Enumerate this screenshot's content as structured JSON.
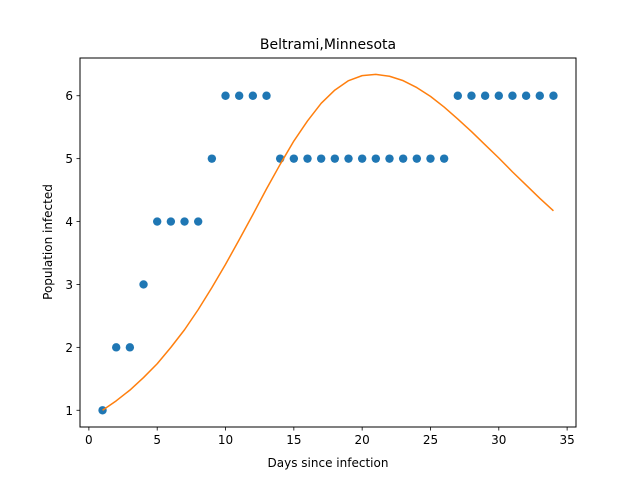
{
  "chart_data": {
    "type": "scatter",
    "title": "Beltrami,Minnesota",
    "xlabel": "Days since infection",
    "ylabel": "Population infected",
    "xlim": [
      -0.65,
      35.65
    ],
    "ylim": [
      0.734,
      6.6
    ],
    "xticks": [
      0,
      5,
      10,
      15,
      20,
      25,
      30,
      35
    ],
    "yticks": [
      1,
      2,
      3,
      4,
      5,
      6
    ],
    "grid": false,
    "series": [
      {
        "kind": "scatter",
        "color": "#1f77b4",
        "x": [
          1,
          2,
          3,
          4,
          5,
          6,
          7,
          8,
          9,
          10,
          11,
          12,
          13,
          14,
          15,
          16,
          17,
          18,
          19,
          20,
          21,
          22,
          23,
          24,
          25,
          26,
          27,
          28,
          29,
          30,
          31,
          32,
          33,
          34
        ],
        "y": [
          1,
          2,
          2,
          3,
          4,
          4,
          4,
          4,
          5,
          6,
          6,
          6,
          6,
          5,
          5,
          5,
          5,
          5,
          5,
          5,
          5,
          5,
          5,
          5,
          5,
          5,
          6,
          6,
          6,
          6,
          6,
          6,
          6,
          6
        ]
      },
      {
        "kind": "line",
        "color": "#ff7f0e",
        "x": [
          1,
          2,
          3,
          4,
          5,
          6,
          7,
          8,
          9,
          10,
          11,
          12,
          13,
          14,
          15,
          16,
          17,
          18,
          19,
          20,
          21,
          22,
          23,
          24,
          25,
          26,
          27,
          28,
          29,
          30,
          31,
          32,
          33,
          34
        ],
        "y": [
          1.0,
          1.15,
          1.32,
          1.52,
          1.74,
          2.0,
          2.28,
          2.6,
          2.95,
          3.32,
          3.71,
          4.11,
          4.52,
          4.91,
          5.28,
          5.6,
          5.88,
          6.09,
          6.24,
          6.32,
          6.34,
          6.31,
          6.24,
          6.13,
          5.99,
          5.82,
          5.63,
          5.43,
          5.22,
          5.01,
          4.79,
          4.58,
          4.37,
          4.17
        ]
      }
    ]
  }
}
